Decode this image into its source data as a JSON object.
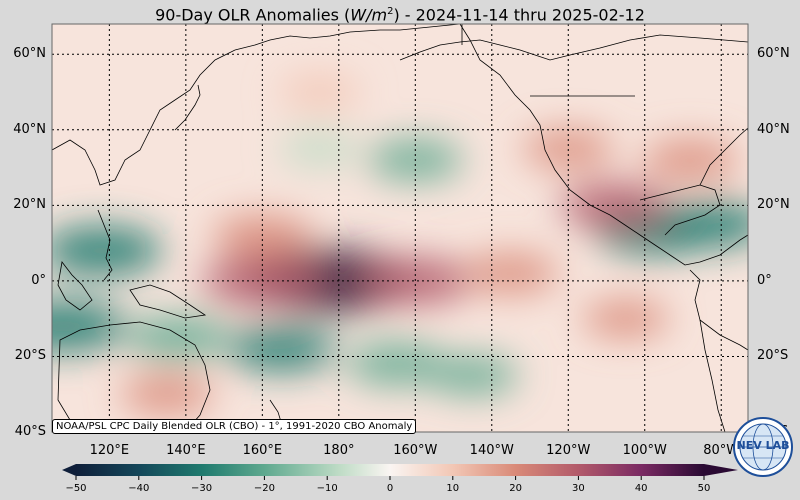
{
  "title": {
    "prefix": "90-Day OLR Anomalies (",
    "unit_italic": "W/m",
    "unit_power": "2",
    "suffix": ") - 2024-11-14 thru 2025-02-12"
  },
  "map": {
    "lat_labels": [
      "60°N",
      "40°N",
      "20°N",
      "0°",
      "20°S",
      "40°S"
    ],
    "lon_labels": [
      "120°E",
      "140°E",
      "160°E",
      "180°",
      "160°W",
      "140°W",
      "120°W",
      "100°W",
      "80°W"
    ],
    "credit": "NOAA/PSL CPC Daily Blended OLR (CBO) - 1°, 1991-2020 CBO Anomaly",
    "gridlines": true,
    "extent": {
      "lon_min": 105,
      "lon_max": 287,
      "lat_min": -40,
      "lat_max": 68
    },
    "anomalies": [
      {
        "lon": 118,
        "lat": 8,
        "value": -28
      },
      {
        "lon": 108,
        "lat": -12,
        "value": -30
      },
      {
        "lon": 138,
        "lat": -15,
        "value": -20
      },
      {
        "lon": 165,
        "lat": -18,
        "value": -22
      },
      {
        "lon": 195,
        "lat": -22,
        "value": -18
      },
      {
        "lon": 215,
        "lat": -25,
        "value": -14
      },
      {
        "lon": 200,
        "lat": 32,
        "value": -16
      },
      {
        "lon": 175,
        "lat": 35,
        "value": -10
      },
      {
        "lon": 262,
        "lat": 13,
        "value": -24
      },
      {
        "lon": 278,
        "lat": 15,
        "value": -22
      },
      {
        "lon": 178,
        "lat": 0,
        "value": 45
      },
      {
        "lon": 160,
        "lat": 0,
        "value": 28
      },
      {
        "lon": 200,
        "lat": 0,
        "value": 24
      },
      {
        "lon": 225,
        "lat": 2,
        "value": 16
      },
      {
        "lon": 160,
        "lat": 12,
        "value": 18
      },
      {
        "lon": 252,
        "lat": 20,
        "value": 22
      },
      {
        "lon": 272,
        "lat": 32,
        "value": 16
      },
      {
        "lon": 240,
        "lat": 35,
        "value": 14
      },
      {
        "lon": 135,
        "lat": -30,
        "value": 15
      },
      {
        "lon": 175,
        "lat": 50,
        "value": 10
      },
      {
        "lon": 255,
        "lat": -10,
        "value": 12
      }
    ]
  },
  "colorbar": {
    "ticks": [
      "−50",
      "−40",
      "−30",
      "−20",
      "−10",
      "0",
      "10",
      "20",
      "30",
      "40",
      "50"
    ],
    "tick_values": [
      -50,
      -40,
      -30,
      -20,
      -10,
      0,
      10,
      20,
      30,
      40,
      50
    ],
    "range": [
      -50,
      50
    ]
  },
  "colors": {
    "negative": "#1f7a6e",
    "neutral": "#faf5f2",
    "positive": "#d98a78",
    "strong_positive": "#4b1553",
    "grid": "#000000"
  },
  "logo": {
    "text": "NEV LAB",
    "icon": "globe-logo-icon"
  }
}
